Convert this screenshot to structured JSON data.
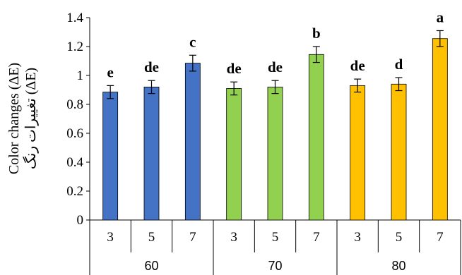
{
  "chart_data": {
    "type": "bar",
    "ylabel_en": "Color changes (ΔE)",
    "ylabel_fa": "تغییرات رنگ  (ΔE)",
    "ylim": [
      0,
      1.4
    ],
    "yticks": [
      "0",
      "0.2",
      "0.4",
      "0.6",
      "0.8",
      "1",
      "1.2",
      "1.4"
    ],
    "ytick_values": [
      0,
      0.2,
      0.4,
      0.6,
      0.8,
      1,
      1.2,
      1.4
    ],
    "groups": [
      {
        "label": "60",
        "color": "#4472C4",
        "categories": [
          "3",
          "5",
          "7"
        ],
        "values": [
          0.885,
          0.92,
          1.085
        ],
        "errors": [
          0.045,
          0.045,
          0.055
        ],
        "letters": [
          "e",
          "de",
          "c"
        ]
      },
      {
        "label": "70",
        "color": "#92D050",
        "categories": [
          "3",
          "5",
          "7"
        ],
        "values": [
          0.91,
          0.92,
          1.145
        ],
        "errors": [
          0.045,
          0.045,
          0.055
        ],
        "letters": [
          "de",
          "de",
          "b"
        ]
      },
      {
        "label": "80",
        "color": "#FFC000",
        "categories": [
          "3",
          "5",
          "7"
        ],
        "values": [
          0.93,
          0.94,
          1.255
        ],
        "errors": [
          0.045,
          0.045,
          0.055
        ],
        "letters": [
          "de",
          "d",
          "a"
        ]
      }
    ]
  }
}
